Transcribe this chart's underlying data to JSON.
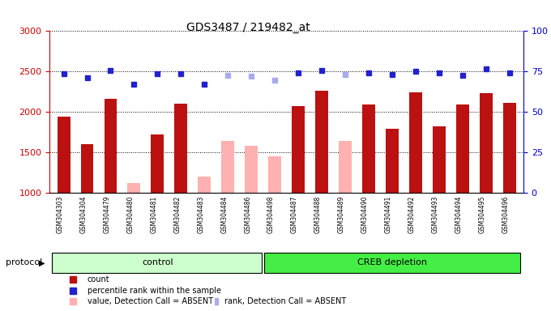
{
  "title": "GDS3487 / 219482_at",
  "samples": [
    "GSM304303",
    "GSM304304",
    "GSM304479",
    "GSM304480",
    "GSM304481",
    "GSM304482",
    "GSM304483",
    "GSM304484",
    "GSM304486",
    "GSM304498",
    "GSM304487",
    "GSM304488",
    "GSM304489",
    "GSM304490",
    "GSM304491",
    "GSM304492",
    "GSM304493",
    "GSM304494",
    "GSM304495",
    "GSM304496"
  ],
  "counts": [
    1940,
    1600,
    2160,
    1120,
    1720,
    2100,
    1200,
    1640,
    1580,
    1450,
    2070,
    2260,
    1640,
    2090,
    1790,
    2240,
    1820,
    2090,
    2230,
    2110
  ],
  "absent_counts": [
    null,
    null,
    null,
    1120,
    null,
    null,
    1200,
    1640,
    1580,
    1450,
    null,
    null,
    1640,
    null,
    null,
    null,
    null,
    null,
    null,
    null
  ],
  "ranks": [
    2470,
    2420,
    2510,
    2340,
    2470,
    2470,
    2340,
    2450,
    2440,
    2390,
    2480,
    2510,
    2460,
    2480,
    2460,
    2500,
    2480,
    2450,
    2530,
    2480
  ],
  "absent_ranks": [
    null,
    null,
    null,
    null,
    null,
    null,
    null,
    2450,
    2440,
    2390,
    null,
    null,
    2460,
    null,
    null,
    null,
    null,
    null,
    null,
    null
  ],
  "control_count": 9,
  "ylim_left": [
    1000,
    3000
  ],
  "ylim_right": [
    0,
    100
  ],
  "left_ticks": [
    1000,
    1500,
    2000,
    2500,
    3000
  ],
  "right_ticks": [
    0,
    25,
    50,
    75,
    100
  ],
  "bar_color_present": "#BB1111",
  "bar_color_absent": "#FFB0B0",
  "rank_color_present": "#2222CC",
  "rank_color_absent": "#AAAAEE",
  "control_bg": "#CCFFCC",
  "creb_bg": "#44EE44",
  "axis_label_color_left": "#CC0000",
  "axis_label_color_right": "#0000CC",
  "grid_color": "black",
  "protocol_label": "protocol",
  "control_label": "control",
  "creb_label": "CREB depletion"
}
